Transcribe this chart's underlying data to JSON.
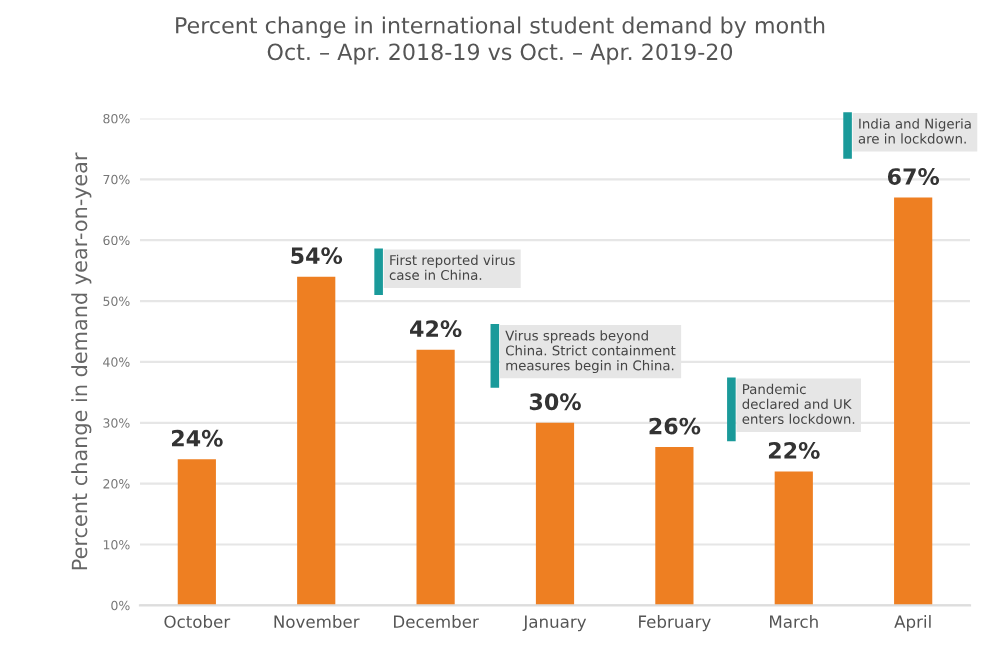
{
  "chart_data": {
    "type": "bar",
    "title": "Percent change in international student demand by month\nOct. – Apr. 2018-19 vs Oct. – Apr. 2019-20",
    "ylabel": "Percent change in demand year-on-year",
    "categories": [
      "October",
      "November",
      "December",
      "January",
      "February",
      "March",
      "April"
    ],
    "values": [
      24,
      54,
      42,
      30,
      26,
      22,
      67
    ],
    "value_labels": [
      "24%",
      "54%",
      "42%",
      "30%",
      "26%",
      "22%",
      "67%"
    ],
    "color": "#ee7f22",
    "ylim": [
      0,
      80
    ],
    "yticks": [
      {
        "value": 0,
        "label": "0%"
      },
      {
        "value": 10,
        "label": "10%"
      },
      {
        "value": 20,
        "label": "20%"
      },
      {
        "value": 30,
        "label": "30%"
      },
      {
        "value": 40,
        "label": "40%"
      },
      {
        "value": 50,
        "label": "50%"
      },
      {
        "value": 60,
        "label": "60%"
      },
      {
        "value": 70,
        "label": "70%"
      },
      {
        "value": 80,
        "label": "80%"
      }
    ],
    "grid": "y",
    "annotations": [
      "First reported virus\ncase in China.",
      "Virus spreads beyond\nChina. Strict containment\nmeasures begin in China.",
      "Pandemic\ndeclared and UK\nenters lockdown.",
      "India and Nigeria\nare in lockdown."
    ]
  }
}
